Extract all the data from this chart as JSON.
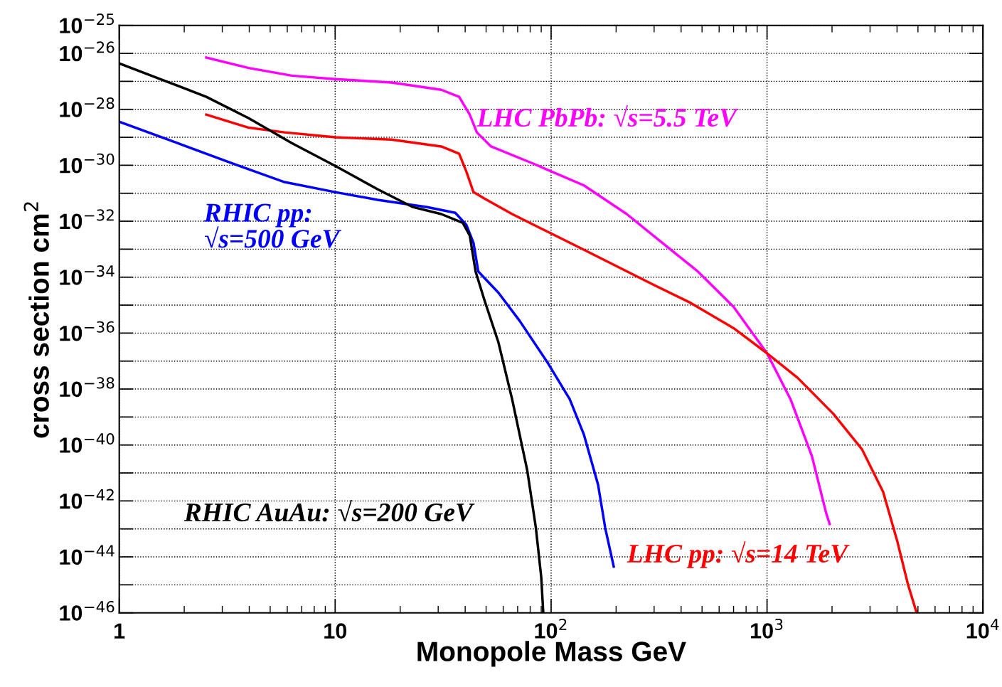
{
  "chart_data": {
    "type": "line",
    "xlabel": "Monopole Mass GeV",
    "ylabel": "cross section cm$^{2}$",
    "log": "xy",
    "grid": true,
    "marker": "none",
    "line_style": "solid",
    "xlim": [
      1,
      10000
    ],
    "ylim": [
      1e-46,
      1e-25
    ],
    "xticks": [
      1,
      10,
      {
        "value": 100,
        "label": "10$^{2}$"
      },
      {
        "value": 1000,
        "label": "10$^{3}$"
      },
      {
        "value": 10000,
        "label": "10$^{4}$"
      }
    ],
    "yticks": [
      {
        "value": 1e-46,
        "label": "10$^{−46}$"
      },
      {
        "value": 1e-45,
        "label": null
      },
      {
        "value": 1e-44,
        "label": "10$^{−44}$"
      },
      {
        "value": 1e-43,
        "label": null
      },
      {
        "value": 1e-42,
        "label": "10$^{−42}$"
      },
      {
        "value": 1e-41,
        "label": null
      },
      {
        "value": 1e-40,
        "label": "10$^{−40}$"
      },
      {
        "value": 1e-39,
        "label": null
      },
      {
        "value": 1e-38,
        "label": "10$^{−38}$"
      },
      {
        "value": 1e-37,
        "label": null
      },
      {
        "value": 1e-36,
        "label": "10$^{−36}$"
      },
      {
        "value": 1e-35,
        "label": null
      },
      {
        "value": 1e-34,
        "label": "10$^{−34}$"
      },
      {
        "value": 1e-33,
        "label": null
      },
      {
        "value": 1e-32,
        "label": "10$^{−32}$"
      },
      {
        "value": 1e-31,
        "label": null
      },
      {
        "value": 1e-30,
        "label": "10$^{−30}$"
      },
      {
        "value": 1e-29,
        "label": null
      },
      {
        "value": 1e-28,
        "label": "10$^{−28}$"
      },
      {
        "value": 1e-27,
        "label": null
      },
      {
        "value": 1e-26,
        "label": "10$^{−26}$"
      },
      {
        "value": 1e-25,
        "label": "10$^{−25}$"
      }
    ],
    "series": [
      {
        "name": "LHC PbPb: √s=5.5 TeV",
        "color": "#ff00ff",
        "x": [
          2.53,
          3.98,
          6.3,
          10,
          18.2,
          31,
          37.5,
          42,
          45.3,
          52.7,
          83.7,
          142,
          224,
          327,
          478,
          700,
          1000,
          1285,
          1614,
          1880,
          1950
        ],
        "values": [
          7.1e-27,
          3e-27,
          1.6e-27,
          1.2e-27,
          9.1e-28,
          5e-28,
          2.8e-28,
          6.5e-29,
          1.5e-29,
          4.7e-30,
          1.1e-30,
          1.9e-31,
          1.8e-32,
          1.7e-33,
          1.6e-34,
          8.7e-36,
          1.9e-37,
          4.3e-39,
          4e-41,
          3.6e-43,
          1.5e-43
        ]
      },
      {
        "name": "LHC pp: √s=14 TeV",
        "color": "#ff0000",
        "x": [
          2.53,
          3.98,
          5.83,
          10,
          18.2,
          31,
          37.5,
          40.5,
          43.7,
          49,
          66,
          97,
          142,
          207,
          303,
          443,
          700,
          1000,
          1387,
          2028,
          2750,
          3450,
          4015,
          4500,
          4930
        ],
        "values": [
          6.5e-29,
          2.2e-29,
          1.5e-29,
          1e-29,
          8.3e-30,
          4.7e-30,
          2.6e-30,
          6e-31,
          1.1e-31,
          6.5e-32,
          1.8e-32,
          4.1e-33,
          9.5e-34,
          2.2e-34,
          5e-35,
          1.2e-35,
          1.5e-36,
          1.9e-37,
          2.5e-38,
          1.3e-39,
          7.1e-41,
          2.1e-42,
          3.5e-44,
          1e-45,
          1e-46
        ]
      },
      {
        "name": "RHIC pp:\n√s=500 GeV",
        "color": "#0000ff",
        "x": [
          1,
          1.86,
          3.42,
          5.83,
          10,
          15.7,
          26.7,
          36,
          40.5,
          43.7,
          46,
          57,
          71.6,
          97,
          122,
          142,
          165,
          178,
          195
        ],
        "values": [
          3.6e-29,
          6.2e-30,
          1.1e-30,
          2.5e-31,
          1.1e-31,
          5.8e-32,
          3.2e-32,
          2e-32,
          7.4e-33,
          1.7e-33,
          1.6e-34,
          2.8e-35,
          2.7e-36,
          8.1e-38,
          4.3e-39,
          2.3e-40,
          3.8e-42,
          1.1e-43,
          4.5e-45
        ]
      },
      {
        "name": "RHIC AuAu: √s=200 GeV",
        "color": "#000000",
        "x": [
          1,
          1.6,
          2.53,
          3.98,
          6.3,
          10,
          15.7,
          22.9,
          31,
          39,
          42,
          44.7,
          49,
          57,
          66,
          77.6,
          85,
          90,
          92
        ],
        "values": [
          4.4e-27,
          1.1e-27,
          2.8e-28,
          4.8e-29,
          6.2e-30,
          9.5e-31,
          1.4e-31,
          3.2e-32,
          1.8e-32,
          8.7e-33,
          3.1e-33,
          1.6e-34,
          1.6e-35,
          4.7e-37,
          4.3e-39,
          1.2e-41,
          1.1e-43,
          1.9e-45,
          1e-46
        ]
      }
    ]
  }
}
